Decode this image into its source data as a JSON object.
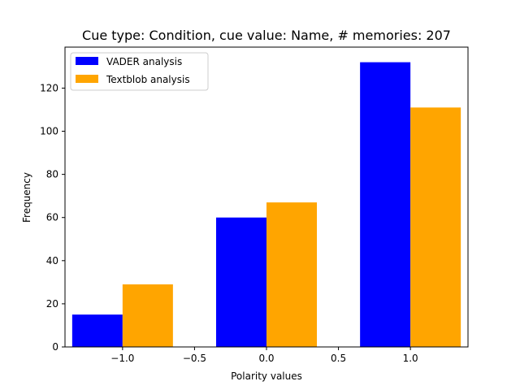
{
  "chart_data": {
    "type": "bar",
    "title": "Cue type: Condition, cue value: Name, # memories: 207",
    "xlabel": "Polarity values",
    "ylabel": "Frequency",
    "categories": [
      -1.0,
      0.0,
      1.0
    ],
    "series": [
      {
        "name": "VADER analysis",
        "color": "#0000ff",
        "values": [
          15,
          60,
          132
        ]
      },
      {
        "name": "Textblob analysis",
        "color": "#ffa500",
        "values": [
          29,
          67,
          111
        ]
      }
    ],
    "xlim": [
      -1.4,
      1.4
    ],
    "ylim": [
      0,
      139
    ],
    "xticks": [
      -1.0,
      -0.5,
      0.0,
      0.5,
      1.0
    ],
    "xtick_labels": [
      "−1.0",
      "−0.5",
      "0.0",
      "0.5",
      "1.0"
    ],
    "yticks": [
      0,
      20,
      40,
      60,
      80,
      100,
      120
    ],
    "ytick_labels": [
      "0",
      "20",
      "40",
      "60",
      "80",
      "100",
      "120"
    ],
    "legend_position": "top-left",
    "grid": false
  }
}
